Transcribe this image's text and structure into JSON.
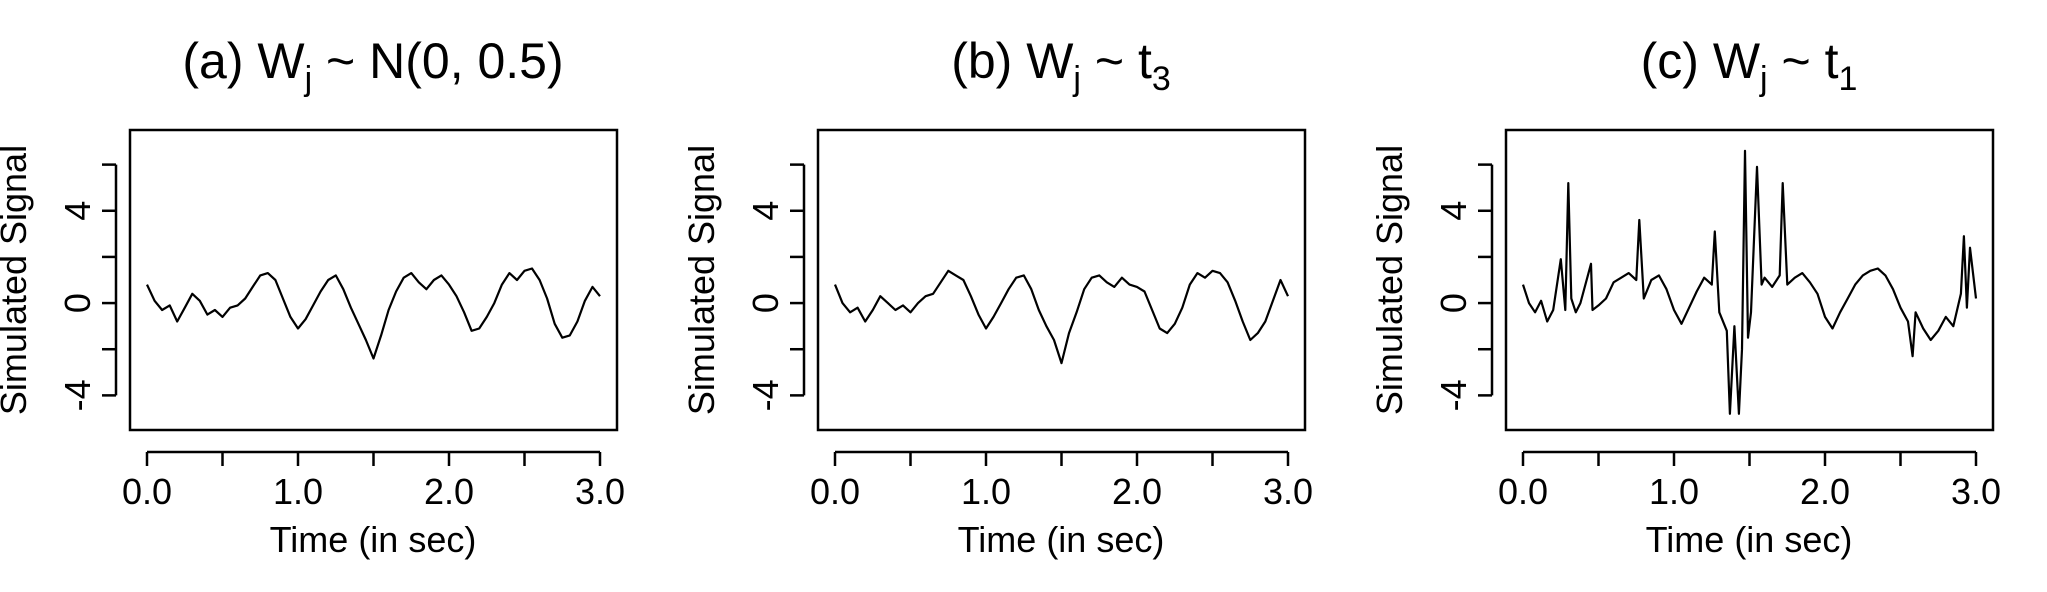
{
  "chart_data": [
    {
      "type": "line",
      "panel_label": "(a)",
      "title_base": "W",
      "title_sub": "j",
      "title_tail": " ~ N(0, 0.5)",
      "xlabel": "Time (in sec)",
      "ylabel": "Simulated Signal",
      "xlim": [
        0,
        3
      ],
      "ylim": [
        -5.5,
        7.5
      ],
      "x_ticks": [
        0,
        0.5,
        1,
        1.5,
        2,
        2.5,
        3
      ],
      "x_tick_labels": [
        "0.0",
        "",
        "1.0",
        "",
        "2.0",
        "",
        "3.0"
      ],
      "y_ticks": [
        -4,
        -2,
        0,
        2,
        4,
        6
      ],
      "y_tick_labels": [
        "-4",
        "",
        "0",
        "",
        "4",
        ""
      ],
      "x": [
        0.0,
        0.05,
        0.1,
        0.15,
        0.2,
        0.25,
        0.3,
        0.35,
        0.4,
        0.45,
        0.5,
        0.55,
        0.6,
        0.65,
        0.7,
        0.75,
        0.8,
        0.85,
        0.9,
        0.95,
        1.0,
        1.05,
        1.1,
        1.15,
        1.2,
        1.25,
        1.3,
        1.35,
        1.4,
        1.45,
        1.5,
        1.55,
        1.6,
        1.65,
        1.7,
        1.75,
        1.8,
        1.85,
        1.9,
        1.95,
        2.0,
        2.05,
        2.1,
        2.15,
        2.2,
        2.25,
        2.3,
        2.35,
        2.4,
        2.45,
        2.5,
        2.55,
        2.6,
        2.65,
        2.7,
        2.75,
        2.8,
        2.85,
        2.9,
        2.95,
        3.0
      ],
      "values": [
        0.8,
        0.1,
        -0.3,
        -0.1,
        -0.8,
        -0.2,
        0.4,
        0.1,
        -0.5,
        -0.3,
        -0.6,
        -0.2,
        -0.1,
        0.2,
        0.7,
        1.2,
        1.3,
        1.0,
        0.2,
        -0.6,
        -1.1,
        -0.7,
        -0.1,
        0.5,
        1.0,
        1.2,
        0.6,
        -0.2,
        -0.9,
        -1.6,
        -2.4,
        -1.4,
        -0.3,
        0.5,
        1.1,
        1.3,
        0.9,
        0.6,
        1.0,
        1.2,
        0.8,
        0.3,
        -0.4,
        -1.2,
        -1.1,
        -0.6,
        0.0,
        0.8,
        1.3,
        1.0,
        1.4,
        1.5,
        1.0,
        0.2,
        -0.9,
        -1.5,
        -1.4,
        -0.8,
        0.1,
        0.7,
        0.3
      ]
    },
    {
      "type": "line",
      "panel_label": "(b)",
      "title_base": "W",
      "title_sub": "j",
      "title_tail": " ~  t",
      "title_tail_sub": "3",
      "xlabel": "Time (in sec)",
      "ylabel": "Simulated Signal",
      "xlim": [
        0,
        3
      ],
      "ylim": [
        -5.5,
        7.5
      ],
      "x_ticks": [
        0,
        0.5,
        1,
        1.5,
        2,
        2.5,
        3
      ],
      "x_tick_labels": [
        "0.0",
        "",
        "1.0",
        "",
        "2.0",
        "",
        "3.0"
      ],
      "y_ticks": [
        -4,
        -2,
        0,
        2,
        4,
        6
      ],
      "y_tick_labels": [
        "-4",
        "",
        "0",
        "",
        "4",
        ""
      ],
      "x": [
        0.0,
        0.05,
        0.1,
        0.15,
        0.2,
        0.25,
        0.3,
        0.35,
        0.4,
        0.45,
        0.5,
        0.55,
        0.6,
        0.65,
        0.7,
        0.75,
        0.8,
        0.85,
        0.9,
        0.95,
        1.0,
        1.05,
        1.1,
        1.15,
        1.2,
        1.25,
        1.3,
        1.35,
        1.4,
        1.45,
        1.5,
        1.55,
        1.6,
        1.65,
        1.7,
        1.75,
        1.8,
        1.85,
        1.9,
        1.95,
        2.0,
        2.05,
        2.1,
        2.15,
        2.2,
        2.25,
        2.3,
        2.35,
        2.4,
        2.45,
        2.5,
        2.55,
        2.6,
        2.65,
        2.7,
        2.75,
        2.8,
        2.85,
        2.9,
        2.95,
        3.0
      ],
      "values": [
        0.8,
        0.0,
        -0.4,
        -0.2,
        -0.8,
        -0.3,
        0.3,
        0.0,
        -0.3,
        -0.1,
        -0.4,
        0.0,
        0.3,
        0.4,
        0.9,
        1.4,
        1.2,
        1.0,
        0.3,
        -0.5,
        -1.1,
        -0.6,
        0.0,
        0.6,
        1.1,
        1.2,
        0.6,
        -0.3,
        -1.0,
        -1.6,
        -2.6,
        -1.3,
        -0.4,
        0.6,
        1.1,
        1.2,
        0.9,
        0.7,
        1.1,
        0.8,
        0.7,
        0.5,
        -0.3,
        -1.1,
        -1.3,
        -0.9,
        -0.2,
        0.8,
        1.3,
        1.1,
        1.4,
        1.3,
        0.9,
        0.1,
        -0.8,
        -1.6,
        -1.3,
        -0.8,
        0.1,
        1.0,
        0.3
      ]
    },
    {
      "type": "line",
      "panel_label": "(c)",
      "title_base": "W",
      "title_sub": "j",
      "title_tail": " ~  t",
      "title_tail_sub": "1",
      "xlabel": "Time (in sec)",
      "ylabel": "Simulated Signal",
      "xlim": [
        0,
        3
      ],
      "ylim": [
        -5.5,
        7.5
      ],
      "x_ticks": [
        0,
        0.5,
        1,
        1.5,
        2,
        2.5,
        3
      ],
      "x_tick_labels": [
        "0.0",
        "",
        "1.0",
        "",
        "2.0",
        "",
        "3.0"
      ],
      "y_ticks": [
        -4,
        -2,
        0,
        2,
        4,
        6
      ],
      "y_tick_labels": [
        "-4",
        "",
        "0",
        "",
        "4",
        ""
      ],
      "x": [
        0.0,
        0.04,
        0.08,
        0.12,
        0.16,
        0.2,
        0.25,
        0.28,
        0.3,
        0.32,
        0.35,
        0.38,
        0.45,
        0.46,
        0.5,
        0.55,
        0.6,
        0.65,
        0.7,
        0.75,
        0.77,
        0.8,
        0.85,
        0.9,
        0.95,
        1.0,
        1.05,
        1.1,
        1.15,
        1.2,
        1.25,
        1.27,
        1.3,
        1.35,
        1.37,
        1.4,
        1.43,
        1.45,
        1.47,
        1.49,
        1.51,
        1.55,
        1.58,
        1.6,
        1.65,
        1.7,
        1.72,
        1.75,
        1.8,
        1.85,
        1.9,
        1.95,
        2.0,
        2.05,
        2.1,
        2.15,
        2.2,
        2.25,
        2.3,
        2.35,
        2.4,
        2.45,
        2.5,
        2.55,
        2.58,
        2.6,
        2.65,
        2.7,
        2.75,
        2.8,
        2.85,
        2.9,
        2.92,
        2.94,
        2.96,
        3.0
      ],
      "values": [
        0.8,
        0.0,
        -0.4,
        0.1,
        -0.8,
        -0.3,
        1.9,
        -0.3,
        5.2,
        0.2,
        -0.4,
        0.0,
        1.7,
        -0.3,
        -0.1,
        0.2,
        0.9,
        1.1,
        1.3,
        1.0,
        3.6,
        0.2,
        1.0,
        1.2,
        0.6,
        -0.3,
        -0.9,
        -0.2,
        0.5,
        1.1,
        0.8,
        3.1,
        -0.4,
        -1.2,
        -4.8,
        -1.0,
        -4.8,
        -2.0,
        6.6,
        -1.5,
        -0.4,
        5.9,
        0.8,
        1.1,
        0.7,
        1.2,
        5.2,
        0.8,
        1.1,
        1.3,
        0.9,
        0.4,
        -0.6,
        -1.1,
        -0.4,
        0.2,
        0.8,
        1.2,
        1.4,
        1.5,
        1.2,
        0.6,
        -0.2,
        -0.8,
        -2.3,
        -0.4,
        -1.1,
        -1.6,
        -1.2,
        -0.6,
        -1.0,
        0.4,
        2.9,
        -0.2,
        2.4,
        0.2
      ]
    }
  ]
}
